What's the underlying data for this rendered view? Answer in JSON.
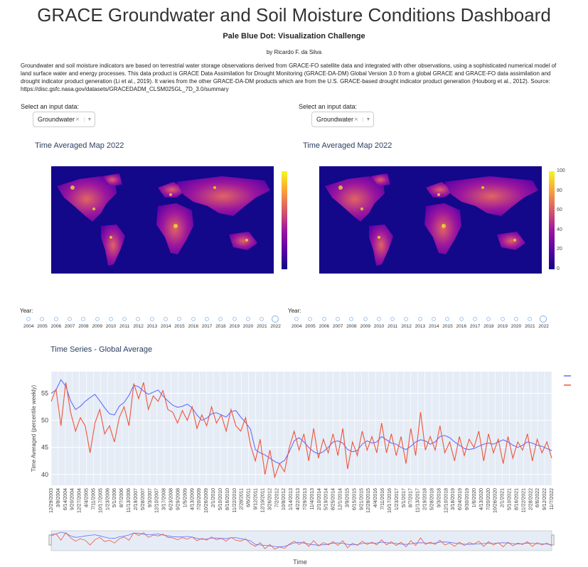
{
  "header": {
    "title": "GRACE Groundwater and Soil Moisture Conditions Dashboard",
    "subtitle": "Pale Blue Dot: Visualization Challenge",
    "byline": "by Ricardo F. da Silva",
    "description": "Groundwater and soil moisture indicators are based on terrestrial water storage observations derived from GRACE-FO satellite data and integrated with other observations, using a sophisticated numerical model of land surface water and energy processes. This data product is GRACE Data Assimilation for Drought Monitoring (GRACE-DA-DM) Global Version 3.0 from a global GRACE and GRACE-FO data assimilation and drought indicator product generation (Li et al., 2019). It varies from the other GRACE-DA-DM products which are from the U.S. GRACE-based drought indicator product generation (Houborg et al., 2012). Source: https://disc.gsfc.nasa.gov/datasets/GRACEDADM_CLSM025GL_7D_3.0/summary"
  },
  "left_panel": {
    "select_label": "Select an input data:",
    "select_value": "Groundwater",
    "map_title": "Time Averaged Map 2022",
    "slider_label": "Year:"
  },
  "right_panel": {
    "select_label": "Select an input data:",
    "select_value": "Groundwater",
    "map_title": "Time Averaged Map 2022",
    "colorbar_ticks": [
      "100",
      "80",
      "60",
      "40",
      "20",
      "0"
    ],
    "slider_label": "Year:"
  },
  "years": [
    "2004",
    "2005",
    "2006",
    "2007",
    "2008",
    "2009",
    "2010",
    "2011",
    "2012",
    "2013",
    "2014",
    "2015",
    "2016",
    "2017",
    "2018",
    "2019",
    "2020",
    "2021",
    "2022"
  ],
  "colors": {
    "series_blue": "#636efa",
    "series_red": "#ef553b",
    "plot_bg": "#e5ecf6",
    "map_bg": "#13078a"
  },
  "chart_data": {
    "type": "line",
    "title": "Time Series - Global Average",
    "xlabel": "Time",
    "ylabel": "Time Averaged (percentile weekly)",
    "ylim": [
      38,
      59
    ],
    "y_ticks": [
      40,
      45,
      50,
      55
    ],
    "x_tick_labels": [
      "12/29/2003",
      "3/8/2004",
      "6/14/2004",
      "9/20/2004",
      "12/27/2004",
      "4/4/2005",
      "7/11/2005",
      "10/17/2005",
      "1/23/2006",
      "5/1/2006",
      "8/7/2006",
      "11/13/2006",
      "2/19/2007",
      "5/28/2007",
      "9/3/2007",
      "12/10/2007",
      "3/17/2008",
      "6/23/2008",
      "9/29/2008",
      "1/5/2009",
      "4/13/2009",
      "7/20/2009",
      "10/26/2009",
      "2/1/2010",
      "5/10/2010",
      "8/16/2010",
      "11/22/2010",
      "2/28/2011",
      "6/6/2011",
      "9/12/2011",
      "12/19/2011",
      "3/26/2012",
      "7/2/2012",
      "10/8/2012",
      "1/14/2013",
      "4/22/2013",
      "7/29/2013",
      "11/4/2013",
      "2/10/2014",
      "5/19/2014",
      "8/25/2014",
      "12/1/2014",
      "3/9/2015",
      "6/15/2015",
      "9/21/2015",
      "12/28/2015",
      "4/4/2016",
      "7/11/2016",
      "10/17/2016",
      "1/23/2017",
      "5/1/2017",
      "8/7/2017",
      "11/13/2017",
      "2/19/2018",
      "5/28/2018",
      "9/3/2018",
      "12/10/2018",
      "3/18/2019",
      "6/24/2019",
      "9/30/2019",
      "1/6/2020",
      "4/13/2020",
      "7/20/2020",
      "10/26/2020",
      "2/1/2021",
      "5/10/2021",
      "8/16/2021",
      "11/22/2021",
      "2/28/2022",
      "6/6/2022",
      "9/12/2022",
      "11/7/2022"
    ],
    "series": [
      {
        "name": "",
        "color": "#636efa",
        "values": [
          55.0,
          55.6,
          57.5,
          56.3,
          53.6,
          52.0,
          52.6,
          53.5,
          54.2,
          54.8,
          53.6,
          52.3,
          51.2,
          51.0,
          52.6,
          53.3,
          54.6,
          56.5,
          56.2,
          55.4,
          54.8,
          55.2,
          55.6,
          54.5,
          53.6,
          52.8,
          52.4,
          52.6,
          53.0,
          52.3,
          51.0,
          50.0,
          50.4,
          51.2,
          51.4,
          51.0,
          50.6,
          51.6,
          51.8,
          50.6,
          49.6,
          48.4,
          44.6,
          44.0,
          43.6,
          43.0,
          42.4,
          42.0,
          42.6,
          44.2,
          46.2,
          46.8,
          46.0,
          45.0,
          44.2,
          43.8,
          44.2,
          45.0,
          46.0,
          46.2,
          45.8,
          44.6,
          44.2,
          44.4,
          45.6,
          46.2,
          45.8,
          46.0,
          47.0,
          46.4,
          45.8,
          45.6,
          45.0,
          44.6,
          45.2,
          46.0,
          46.4,
          46.2,
          45.6,
          46.0,
          47.0,
          47.2,
          46.8,
          46.0,
          45.4,
          44.8,
          44.6,
          44.8,
          45.2,
          45.6,
          45.8,
          45.6,
          46.0,
          46.4,
          46.0,
          45.4,
          45.0,
          45.4,
          46.0,
          45.8,
          45.4,
          45.2,
          44.8,
          44.4
        ]
      },
      {
        "name": "",
        "color": "#ef553b",
        "values": [
          53.5,
          55.8,
          49.0,
          57.0,
          51.5,
          48.0,
          50.5,
          49.0,
          44.0,
          49.5,
          52.0,
          47.5,
          49.0,
          46.0,
          50.5,
          52.5,
          49.0,
          56.8,
          54.0,
          57.0,
          52.0,
          54.5,
          53.5,
          55.5,
          52.0,
          51.5,
          49.5,
          51.8,
          50.0,
          52.5,
          48.5,
          51.0,
          49.0,
          52.5,
          49.5,
          51.0,
          48.0,
          52.0,
          49.0,
          48.0,
          50.5,
          45.5,
          42.5,
          46.5,
          40.0,
          44.5,
          39.5,
          42.0,
          40.5,
          45.0,
          48.0,
          44.5,
          47.5,
          42.5,
          48.5,
          43.0,
          46.5,
          44.0,
          47.5,
          43.5,
          48.5,
          41.0,
          46.0,
          43.5,
          48.0,
          44.5,
          47.0,
          44.0,
          49.5,
          44.0,
          47.5,
          43.5,
          47.0,
          42.0,
          48.5,
          43.5,
          51.5,
          44.5,
          47.0,
          44.5,
          49.0,
          44.0,
          46.0,
          42.5,
          47.0,
          43.5,
          46.5,
          45.0,
          48.0,
          42.5,
          47.5,
          44.0,
          46.5,
          42.0,
          47.0,
          43.0,
          46.0,
          44.5,
          47.5,
          42.5,
          46.5,
          44.0,
          46.0,
          43.0
        ]
      }
    ]
  }
}
